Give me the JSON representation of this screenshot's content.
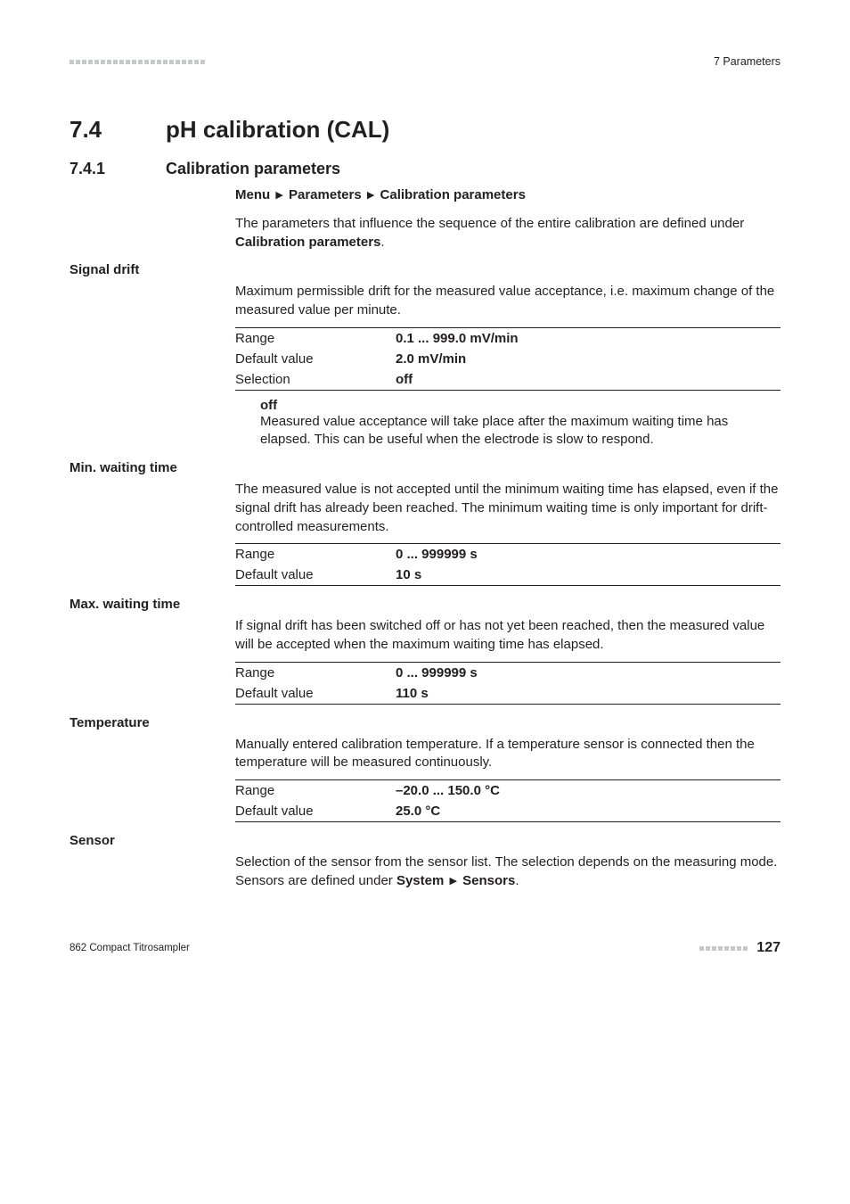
{
  "header": {
    "chapter": "7 Parameters"
  },
  "section": {
    "number": "7.4",
    "title": "pH calibration (CAL)"
  },
  "subsection": {
    "number": "7.4.1",
    "title": "Calibration parameters",
    "menu_parts": [
      "Menu",
      "Parameters",
      "Calibration parameters"
    ],
    "intro_a": "The parameters that influence the sequence of the entire calibration are defined under ",
    "intro_bold": "Calibration parameters",
    "intro_b": "."
  },
  "params": {
    "signal_drift": {
      "label": "Signal drift",
      "desc": "Maximum permissible drift for the measured value acceptance, i.e. maximum change of the measured value per minute.",
      "rows": [
        {
          "k": "Range",
          "v": "0.1 ... 999.0 mV/min"
        },
        {
          "k": "Default value",
          "v": "2.0 mV/min"
        },
        {
          "k": "Selection",
          "v": "off"
        }
      ],
      "def_term": "off",
      "def_text": "Measured value acceptance will take place after the maximum waiting time has elapsed. This can be useful when the electrode is slow to respond."
    },
    "min_wait": {
      "label": "Min. waiting time",
      "desc": "The measured value is not accepted until the minimum waiting time has elapsed, even if the signal drift has already been reached. The minimum waiting time is only important for drift-controlled measurements.",
      "rows": [
        {
          "k": "Range",
          "v": "0 ... 999999 s"
        },
        {
          "k": "Default value",
          "v": "10 s"
        }
      ]
    },
    "max_wait": {
      "label": "Max. waiting time",
      "desc": "If signal drift has been switched off or has not yet been reached, then the measured value will be accepted when the maximum waiting time has elapsed.",
      "rows": [
        {
          "k": "Range",
          "v": "0 ... 999999 s"
        },
        {
          "k": "Default value",
          "v": "110 s"
        }
      ]
    },
    "temperature": {
      "label": "Temperature",
      "desc": "Manually entered calibration temperature. If a temperature sensor is connected then the temperature will be measured continuously.",
      "rows": [
        {
          "k": "Range",
          "v": "–20.0 ... 150.0 °C"
        },
        {
          "k": "Default value",
          "v": "25.0 °C"
        }
      ]
    },
    "sensor": {
      "label": "Sensor",
      "desc_a": "Selection of the sensor from the sensor list. The selection depends on the measuring mode. Sensors are defined under ",
      "desc_bold1": "System",
      "desc_mid": " ",
      "desc_bold2": "Sensors",
      "desc_b": "."
    }
  },
  "labels": {
    "range": "Range",
    "default": "Default value",
    "selection": "Selection"
  },
  "footer": {
    "product": "862 Compact Titrosampler",
    "page": "127"
  },
  "style": {
    "dash_color": "#c7c8ca",
    "text_color": "#231f20",
    "rule_color": "#231f20",
    "top_dash_count": 22,
    "footer_dash_count": 8
  }
}
